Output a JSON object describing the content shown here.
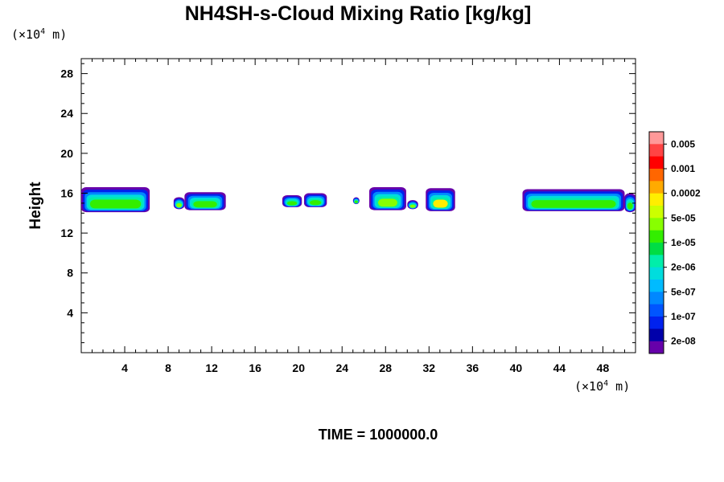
{
  "chart_data": {
    "type": "heatmap",
    "title": "NH4SH-s-Cloud Mixing Ratio [kg/kg]",
    "xlabel": "",
    "ylabel": "Height",
    "x_unit": "(×10",
    "x_unit_exp": "4",
    "x_unit_tail": " m)",
    "y_unit": "(×10",
    "y_unit_exp": "4",
    "y_unit_tail": " m)",
    "xlim": [
      0,
      51
    ],
    "ylim": [
      0,
      29.5
    ],
    "x_ticks": [
      4,
      8,
      12,
      16,
      20,
      24,
      28,
      32,
      36,
      40,
      44,
      48
    ],
    "y_ticks": [
      4,
      8,
      12,
      16,
      20,
      24,
      28
    ],
    "grid": false,
    "colorbar": {
      "labels": [
        "0.005",
        "0.001",
        "0.0002",
        "5e-05",
        "1e-05",
        "2e-06",
        "5e-07",
        "1e-07",
        "2e-08"
      ],
      "colors": [
        "#ff9999",
        "#ff4444",
        "#ff0000",
        "#ff6600",
        "#ffaa00",
        "#ffee00",
        "#ccff00",
        "#88ff00",
        "#33ee00",
        "#00dd44",
        "#00eeaa",
        "#00dddd",
        "#00bbff",
        "#0088ff",
        "#0055ff",
        "#0022ee",
        "#0000aa",
        "#6600aa"
      ]
    },
    "cloud_patches": [
      {
        "x": [
          0,
          6.3
        ],
        "base": 14.1,
        "top": 16.6,
        "core": "#33ee00"
      },
      {
        "x": [
          8.5,
          9.5
        ],
        "base": 14.4,
        "top": 15.6,
        "core": "#88ff00"
      },
      {
        "x": [
          9.5,
          13.3
        ],
        "base": 14.3,
        "top": 16.1,
        "core": "#33ee00"
      },
      {
        "x": [
          18.5,
          20.3
        ],
        "base": 14.6,
        "top": 15.8,
        "core": "#33ee00"
      },
      {
        "x": [
          20.5,
          22.6
        ],
        "base": 14.6,
        "top": 16.0,
        "core": "#33ee00"
      },
      {
        "x": [
          25.0,
          25.6
        ],
        "base": 14.9,
        "top": 15.6,
        "core": "#33ee00"
      },
      {
        "x": [
          26.5,
          29.9
        ],
        "base": 14.3,
        "top": 16.6,
        "core": "#88ff00"
      },
      {
        "x": [
          30.0,
          31.0
        ],
        "base": 14.4,
        "top": 15.3,
        "core": "#88ff00"
      },
      {
        "x": [
          31.7,
          34.4
        ],
        "base": 14.2,
        "top": 16.5,
        "core": "#ffee00"
      },
      {
        "x": [
          40.6,
          50.0
        ],
        "base": 14.2,
        "top": 16.4,
        "core": "#33ee00"
      },
      {
        "x": [
          50.0,
          51.0
        ],
        "base": 14.1,
        "top": 16.0,
        "core": "#33ee00"
      }
    ]
  },
  "footer": {
    "time_label": "TIME = 1000000.0"
  }
}
